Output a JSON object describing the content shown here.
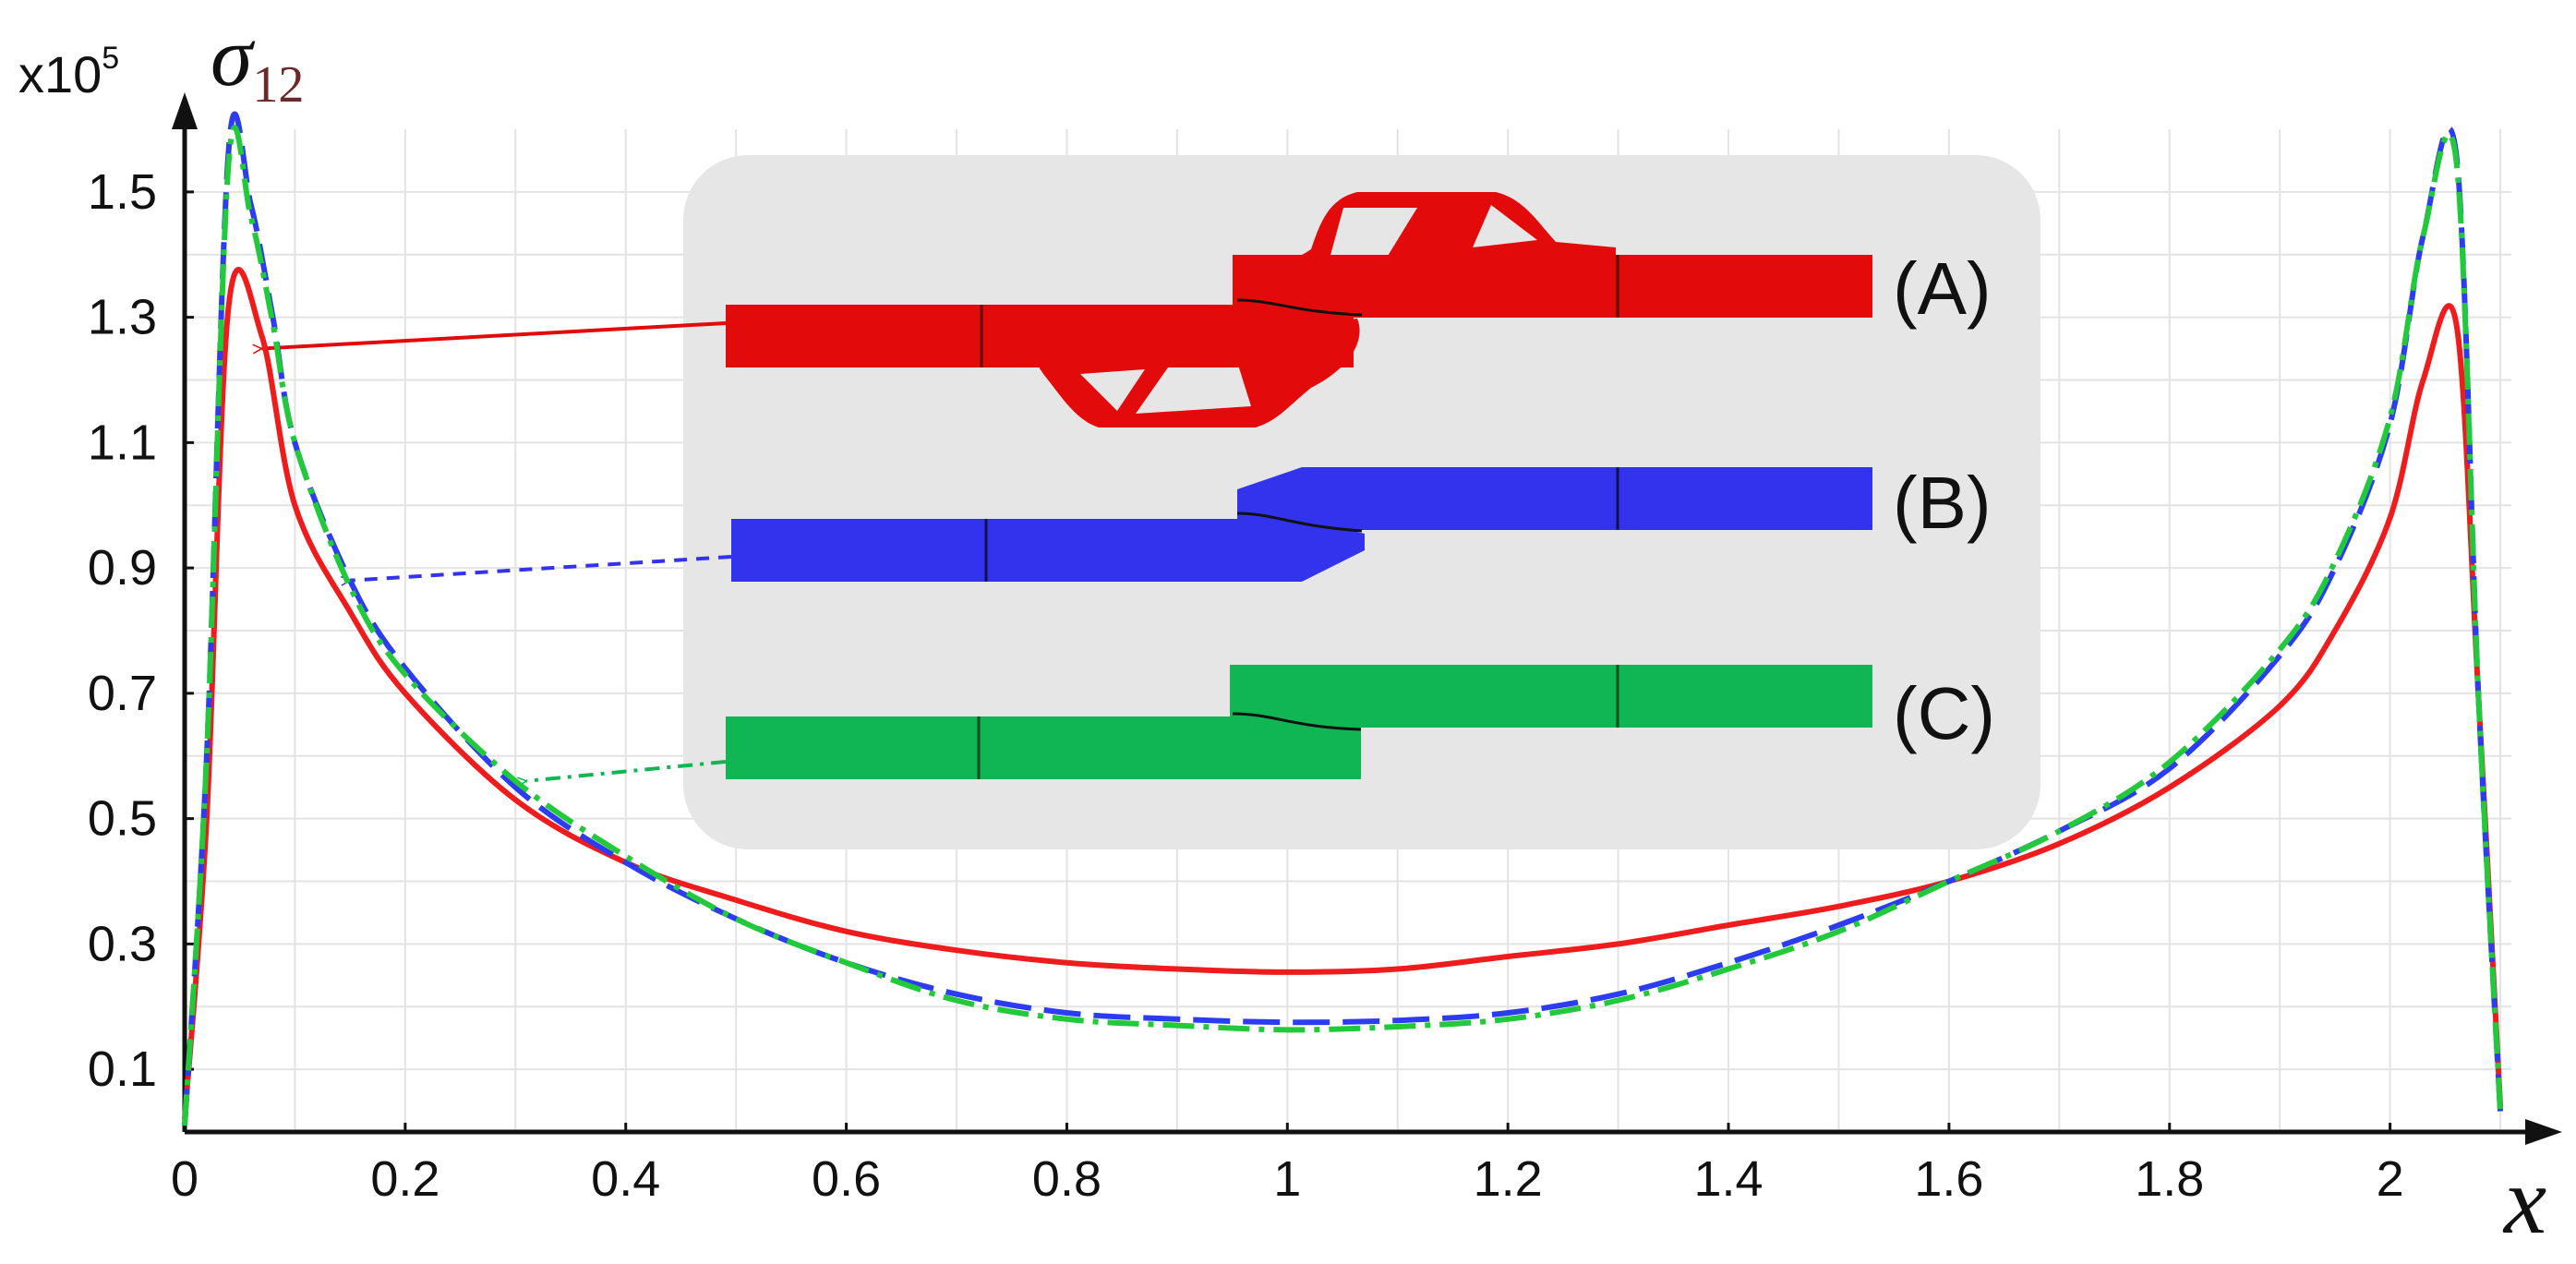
{
  "chart_data": {
    "type": "line",
    "title": "",
    "xlabel": "x",
    "ylabel_symbol": "σ",
    "ylabel_subscript": "12",
    "y_multiplier_base": "x10",
    "y_multiplier_exp": "5",
    "xlim": [
      0,
      2.11
    ],
    "ylim": [
      0,
      1.6
    ],
    "x_ticks": [
      0,
      0.2,
      0.4,
      0.6,
      0.8,
      1,
      1.2,
      1.4,
      1.6,
      1.8,
      2
    ],
    "x_tick_labels": [
      "0",
      "0.2",
      "0.4",
      "0.6",
      "0.8",
      "1",
      "1.2",
      "1.4",
      "1.6",
      "1.8",
      "2"
    ],
    "y_ticks": [
      0.1,
      0.3,
      0.5,
      0.7,
      0.9,
      1.1,
      1.3,
      1.5
    ],
    "y_tick_labels": [
      "0.1",
      "0.3",
      "0.5",
      "0.7",
      "0.9",
      "1.1",
      "1.3",
      "1.5"
    ],
    "grid": true,
    "series": [
      {
        "name": "(A)",
        "color": "#ee1c1c",
        "style": "solid",
        "points": [
          [
            0.0,
            0.02
          ],
          [
            0.02,
            0.5
          ],
          [
            0.04,
            1.32
          ],
          [
            0.07,
            1.27
          ],
          [
            0.1,
            1.0
          ],
          [
            0.15,
            0.83
          ],
          [
            0.2,
            0.7
          ],
          [
            0.3,
            0.53
          ],
          [
            0.4,
            0.43
          ],
          [
            0.5,
            0.37
          ],
          [
            0.6,
            0.32
          ],
          [
            0.7,
            0.29
          ],
          [
            0.8,
            0.27
          ],
          [
            0.9,
            0.26
          ],
          [
            1.0,
            0.255
          ],
          [
            1.1,
            0.26
          ],
          [
            1.2,
            0.28
          ],
          [
            1.3,
            0.3
          ],
          [
            1.4,
            0.33
          ],
          [
            1.5,
            0.36
          ],
          [
            1.6,
            0.4
          ],
          [
            1.7,
            0.46
          ],
          [
            1.8,
            0.55
          ],
          [
            1.9,
            0.68
          ],
          [
            1.95,
            0.8
          ],
          [
            2.0,
            0.98
          ],
          [
            2.03,
            1.2
          ],
          [
            2.06,
            1.29
          ],
          [
            2.08,
            0.7
          ],
          [
            2.1,
            0.04
          ]
        ]
      },
      {
        "name": "(B)",
        "color": "#2c3cf0",
        "style": "dashed",
        "points": [
          [
            0.0,
            0.01
          ],
          [
            0.02,
            0.6
          ],
          [
            0.04,
            1.57
          ],
          [
            0.06,
            1.48
          ],
          [
            0.08,
            1.3
          ],
          [
            0.1,
            1.1
          ],
          [
            0.15,
            0.88
          ],
          [
            0.2,
            0.74
          ],
          [
            0.3,
            0.55
          ],
          [
            0.4,
            0.43
          ],
          [
            0.5,
            0.34
          ],
          [
            0.6,
            0.27
          ],
          [
            0.7,
            0.22
          ],
          [
            0.8,
            0.19
          ],
          [
            0.9,
            0.18
          ],
          [
            1.0,
            0.175
          ],
          [
            1.1,
            0.178
          ],
          [
            1.2,
            0.19
          ],
          [
            1.3,
            0.22
          ],
          [
            1.4,
            0.27
          ],
          [
            1.5,
            0.33
          ],
          [
            1.6,
            0.4
          ],
          [
            1.7,
            0.48
          ],
          [
            1.8,
            0.58
          ],
          [
            1.9,
            0.76
          ],
          [
            1.95,
            0.9
          ],
          [
            2.0,
            1.13
          ],
          [
            2.03,
            1.43
          ],
          [
            2.06,
            1.56
          ],
          [
            2.08,
            0.7
          ],
          [
            2.1,
            0.03
          ]
        ]
      },
      {
        "name": "(C)",
        "color": "#22c93a",
        "style": "dashdot",
        "points": [
          [
            0.0,
            0.01
          ],
          [
            0.02,
            0.6
          ],
          [
            0.04,
            1.55
          ],
          [
            0.06,
            1.46
          ],
          [
            0.08,
            1.29
          ],
          [
            0.1,
            1.1
          ],
          [
            0.15,
            0.87
          ],
          [
            0.2,
            0.73
          ],
          [
            0.3,
            0.56
          ],
          [
            0.4,
            0.44
          ],
          [
            0.5,
            0.34
          ],
          [
            0.6,
            0.27
          ],
          [
            0.7,
            0.21
          ],
          [
            0.8,
            0.18
          ],
          [
            0.9,
            0.17
          ],
          [
            1.0,
            0.163
          ],
          [
            1.1,
            0.168
          ],
          [
            1.2,
            0.18
          ],
          [
            1.3,
            0.21
          ],
          [
            1.4,
            0.26
          ],
          [
            1.5,
            0.32
          ],
          [
            1.6,
            0.4
          ],
          [
            1.7,
            0.48
          ],
          [
            1.8,
            0.59
          ],
          [
            1.9,
            0.77
          ],
          [
            1.95,
            0.91
          ],
          [
            2.0,
            1.14
          ],
          [
            2.03,
            1.43
          ],
          [
            2.06,
            1.55
          ],
          [
            2.08,
            0.7
          ],
          [
            2.1,
            0.03
          ]
        ]
      }
    ],
    "inset": {
      "labels": [
        "(A)",
        "(B)",
        "(C)"
      ],
      "colors": [
        "#e20a0a",
        "#3333ee",
        "#10b554"
      ],
      "arrow_targets": [
        [
          0.07,
          1.25
        ],
        [
          0.15,
          0.88
        ],
        [
          0.31,
          0.56
        ]
      ],
      "background": "#e6e6e6"
    }
  }
}
